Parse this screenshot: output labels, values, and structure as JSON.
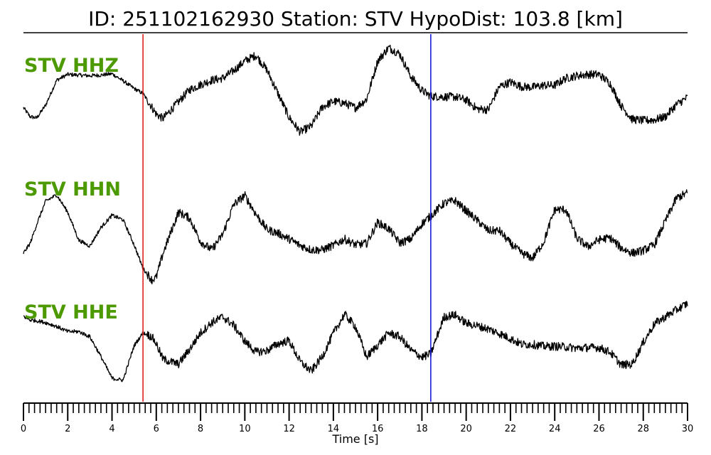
{
  "chart_data": {
    "type": "line",
    "title": "ID: 251102162930   Station: STV   HypoDist:   103.8 [km]",
    "xlabel": "Time [s]",
    "xlim": [
      0,
      30
    ],
    "x_major_ticks": [
      0,
      2,
      4,
      6,
      8,
      10,
      12,
      14,
      16,
      18,
      20,
      22,
      24,
      26,
      28,
      30
    ],
    "x_minor_step": 0.25,
    "label_color": "#4c9a00",
    "trace_color": "#000000",
    "series": [
      {
        "name": "STV HHZ",
        "ylim": [
          -1,
          1
        ],
        "noise": 0.03,
        "x": [
          0,
          0.3,
          0.6,
          1,
          1.5,
          2,
          2.5,
          3,
          3.5,
          4,
          4.5,
          5,
          5.4,
          5.8,
          6,
          6.3,
          7,
          7.5,
          8,
          8.5,
          9,
          9.5,
          10,
          10.5,
          11,
          11.5,
          12,
          12.5,
          13,
          13.5,
          14,
          14.5,
          15,
          15.5,
          16,
          16.5,
          17,
          17.5,
          18,
          18.4,
          19,
          19.5,
          20,
          20.5,
          21,
          21.5,
          22,
          22.5,
          23,
          23.5,
          24,
          24.5,
          25,
          25.5,
          26,
          26.5,
          27,
          27.5,
          28,
          28.5,
          29,
          29.5,
          30
        ],
        "values": [
          -0.15,
          -0.29,
          -0.31,
          -0.11,
          0.28,
          0.37,
          0.36,
          0.35,
          0.36,
          0.38,
          0.27,
          0.15,
          0.07,
          -0.14,
          -0.25,
          -0.32,
          -0.06,
          0.13,
          0.21,
          0.28,
          0.31,
          0.43,
          0.58,
          0.67,
          0.44,
          0.07,
          -0.3,
          -0.53,
          -0.44,
          -0.14,
          -0.05,
          -0.08,
          -0.15,
          -0.02,
          0.58,
          0.79,
          0.69,
          0.34,
          0.12,
          0.03,
          0.02,
          0.02,
          -0.03,
          -0.17,
          -0.18,
          0.18,
          0.25,
          0.18,
          0.17,
          0.2,
          0.2,
          0.31,
          0.35,
          0.37,
          0.37,
          0.23,
          -0.12,
          -0.33,
          -0.35,
          -0.34,
          -0.29,
          -0.1,
          0.01
        ]
      },
      {
        "name": "STV HHN",
        "ylim": [
          -1,
          1
        ],
        "noise": 0.03,
        "x": [
          0,
          0.3,
          0.6,
          1,
          1.5,
          2,
          2.5,
          3,
          3.5,
          4,
          4.5,
          5,
          5.4,
          5.8,
          6,
          6.3,
          7,
          7.5,
          8,
          8.5,
          9,
          9.5,
          10,
          10.5,
          11,
          11.5,
          12,
          12.5,
          13,
          13.5,
          14,
          14.5,
          15,
          15.5,
          16,
          16.5,
          17,
          17.5,
          18,
          18.4,
          19,
          19.5,
          20,
          20.5,
          21,
          21.5,
          22,
          22.5,
          23,
          23.5,
          24,
          24.5,
          25,
          25.5,
          26,
          26.5,
          27,
          27.5,
          28,
          28.5,
          29,
          29.5,
          30
        ],
        "values": [
          -0.6,
          -0.45,
          -0.15,
          0.21,
          0.31,
          0.04,
          -0.4,
          -0.49,
          -0.2,
          -0.01,
          -0.08,
          -0.47,
          -0.84,
          -1.02,
          -0.98,
          -0.61,
          0.04,
          -0.05,
          -0.42,
          -0.55,
          -0.31,
          0.16,
          0.3,
          0.01,
          -0.23,
          -0.29,
          -0.38,
          -0.48,
          -0.55,
          -0.55,
          -0.48,
          -0.38,
          -0.47,
          -0.45,
          -0.12,
          -0.22,
          -0.44,
          -0.38,
          -0.14,
          -0.02,
          0.18,
          0.22,
          0.06,
          -0.09,
          -0.25,
          -0.25,
          -0.45,
          -0.6,
          -0.68,
          -0.43,
          0.08,
          0.08,
          -0.37,
          -0.5,
          -0.39,
          -0.36,
          -0.52,
          -0.6,
          -0.56,
          -0.47,
          -0.1,
          0.26,
          0.34
        ]
      },
      {
        "name": "STV HHE",
        "ylim": [
          -1,
          1
        ],
        "noise": 0.03,
        "x": [
          0,
          0.3,
          0.6,
          1,
          1.5,
          2,
          2.5,
          3,
          3.5,
          4,
          4.5,
          5,
          5.4,
          5.8,
          6,
          6.3,
          7,
          7.5,
          8,
          8.5,
          9,
          9.5,
          10,
          10.5,
          11,
          11.5,
          12,
          12.5,
          13,
          13.5,
          14,
          14.5,
          15,
          15.5,
          16,
          16.5,
          17,
          17.5,
          18,
          18.4,
          19,
          19.5,
          20,
          20.5,
          21,
          21.5,
          22,
          22.5,
          23,
          23.5,
          24,
          24.5,
          25,
          25.5,
          26,
          26.5,
          27,
          27.5,
          28,
          28.5,
          29,
          29.5,
          30
        ],
        "values": [
          0.38,
          0.32,
          0.31,
          0.28,
          0.22,
          0.14,
          0.14,
          0.06,
          -0.25,
          -0.59,
          -0.62,
          -0.08,
          0.12,
          0.06,
          -0.05,
          -0.29,
          -0.37,
          -0.14,
          0.12,
          0.28,
          0.37,
          0.24,
          -0.01,
          -0.18,
          -0.16,
          -0.05,
          0.0,
          -0.33,
          -0.48,
          -0.25,
          0.11,
          0.41,
          0.22,
          -0.26,
          -0.07,
          0.12,
          0.06,
          -0.15,
          -0.26,
          -0.21,
          0.37,
          0.4,
          0.27,
          0.23,
          0.18,
          0.11,
          0.03,
          -0.06,
          -0.06,
          -0.09,
          -0.09,
          -0.1,
          -0.12,
          -0.11,
          -0.11,
          -0.18,
          -0.38,
          -0.37,
          -0.03,
          0.26,
          0.37,
          0.48,
          0.58
        ]
      }
    ],
    "markers": [
      {
        "x": 5.4,
        "color": "#e02020"
      },
      {
        "x": 18.4,
        "color": "#1a1adc"
      }
    ]
  }
}
